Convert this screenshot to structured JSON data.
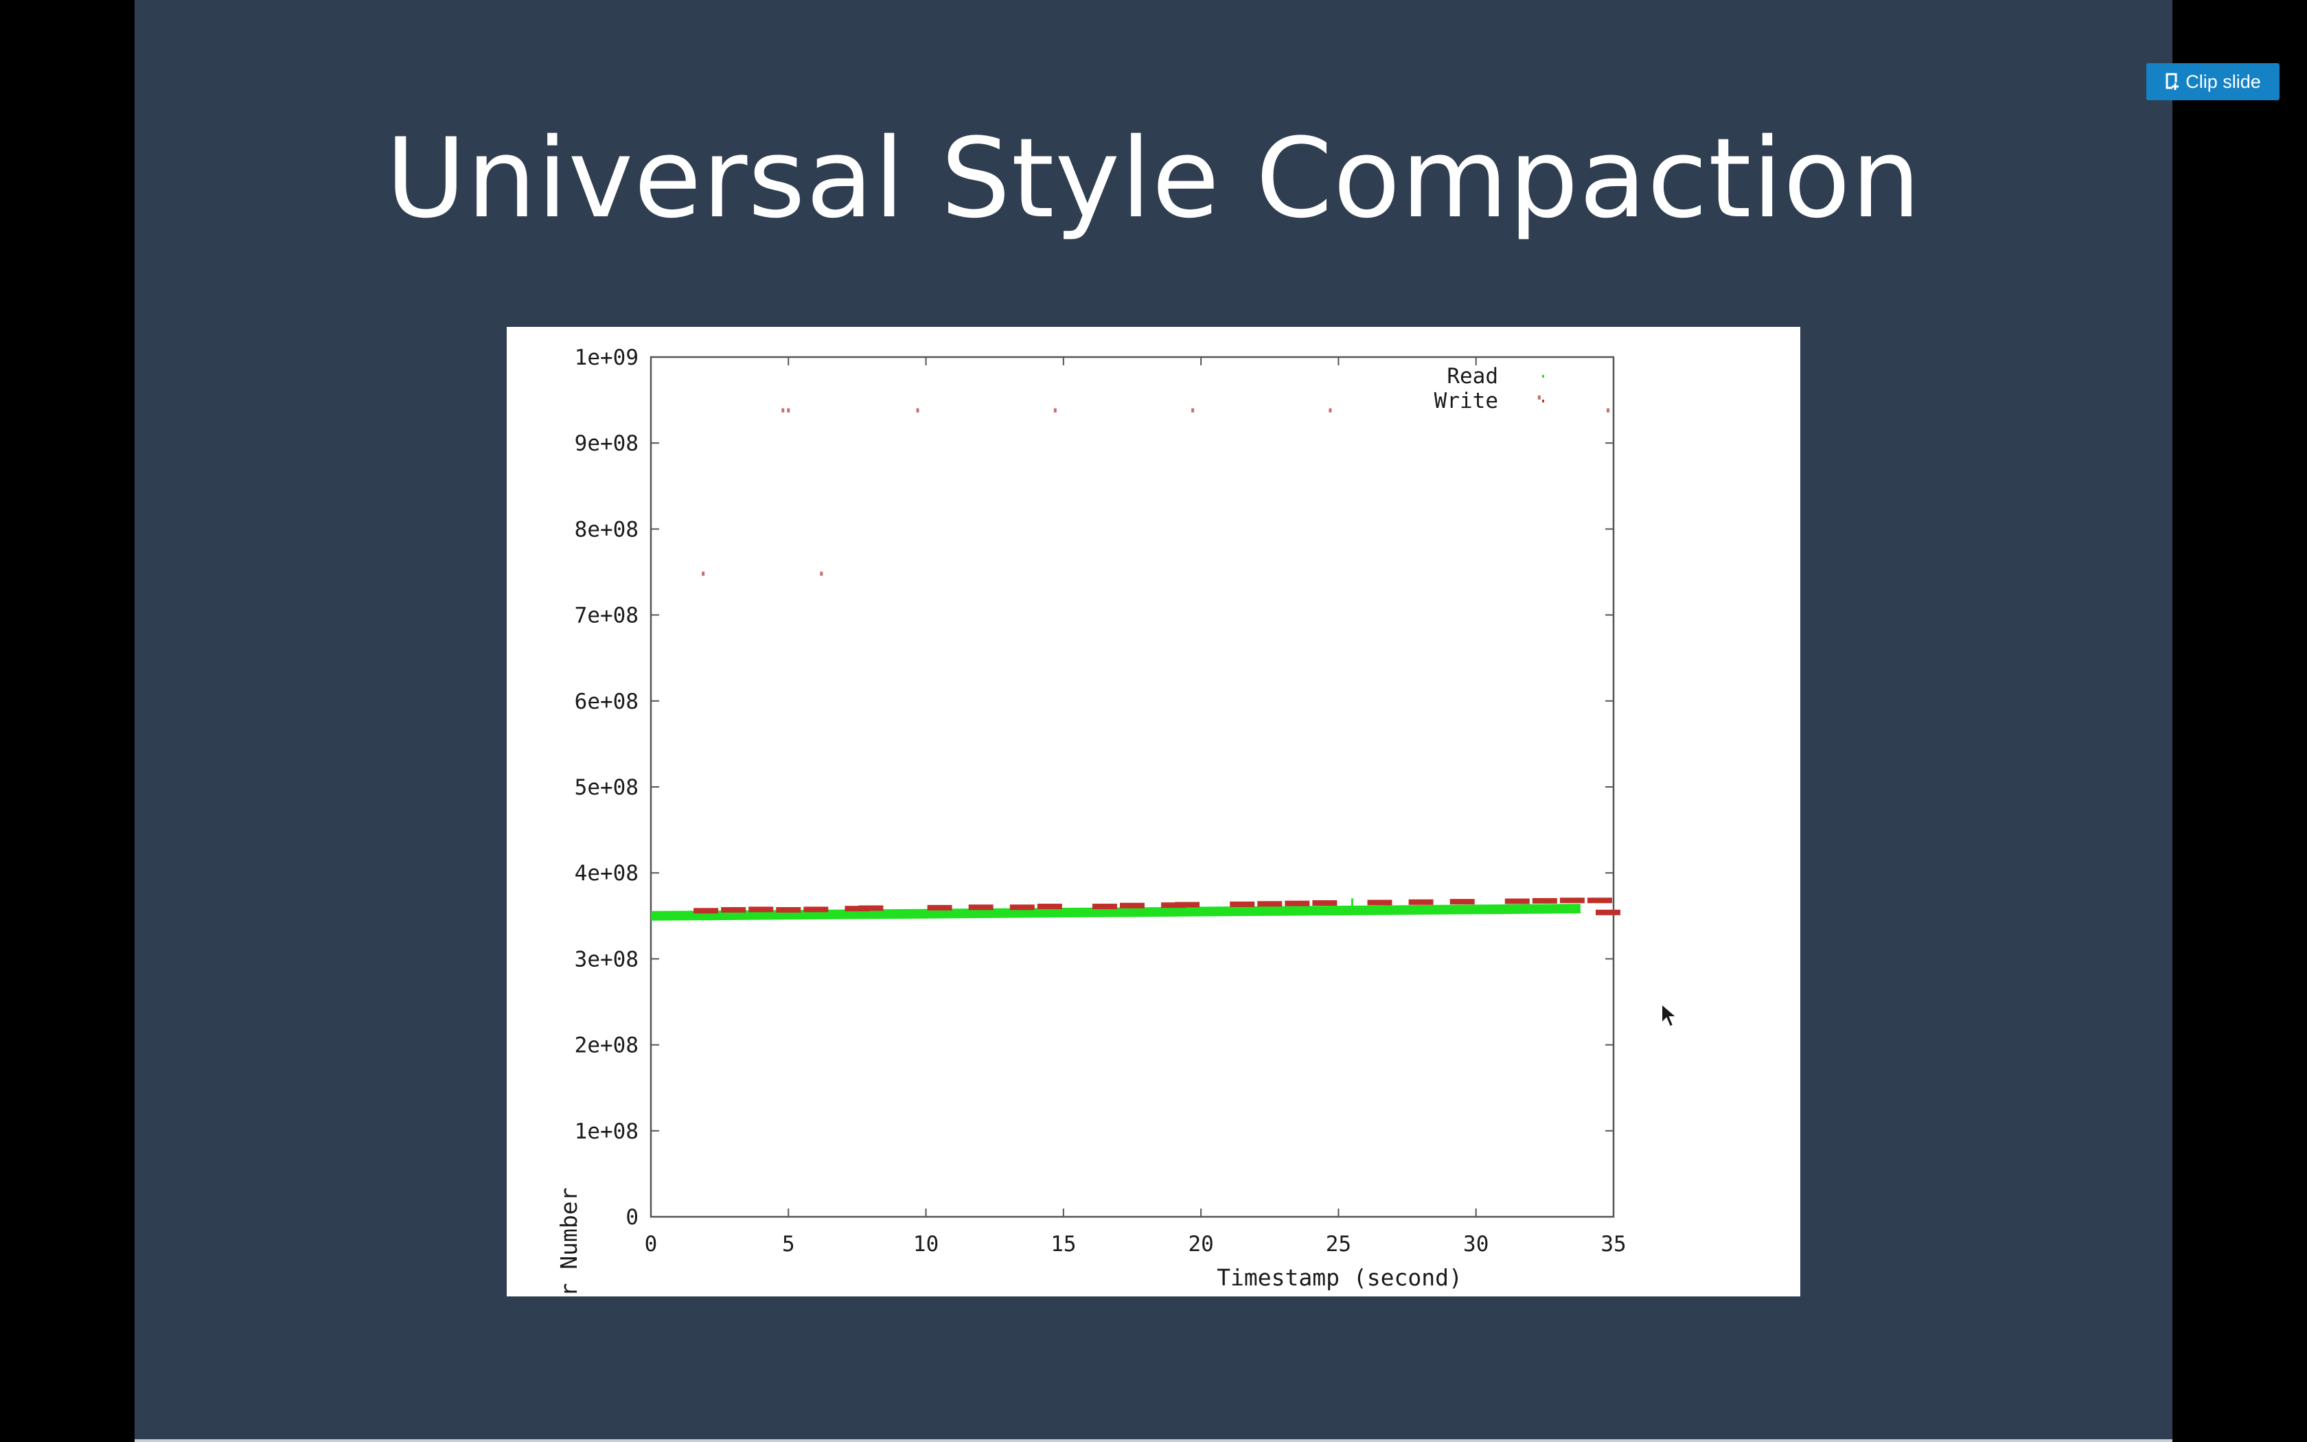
{
  "slide": {
    "title": "Universal Style Compaction"
  },
  "toolbar": {
    "clip_label": "Clip slide"
  },
  "colors": {
    "slide_background": "#2f3e50",
    "clip_button": "#1682c6",
    "read_series": "#20e020",
    "write_series": "#c0302a"
  },
  "chart_data": {
    "type": "scatter",
    "title": "",
    "xlabel": "Timestamp (second)",
    "ylabel": "Logical Sector Number",
    "xlim": [
      0,
      35
    ],
    "ylim": [
      0,
      1000000000
    ],
    "x_ticks": [
      0,
      5,
      10,
      15,
      20,
      25,
      30,
      35
    ],
    "x_tick_labels": [
      "0",
      "5",
      "10",
      "15",
      "20",
      "25",
      "30",
      "35"
    ],
    "y_ticks": [
      0,
      100000000,
      200000000,
      300000000,
      400000000,
      500000000,
      600000000,
      700000000,
      800000000,
      900000000,
      1000000000
    ],
    "y_tick_labels": [
      "0",
      "1e+08",
      "2e+08",
      "3e+08",
      "4e+08",
      "5e+08",
      "6e+08",
      "7e+08",
      "8e+08",
      "9e+08",
      "1e+09"
    ],
    "grid": false,
    "legend_position": "top-right",
    "series": [
      {
        "name": "Read",
        "color": "#20e020",
        "points": [
          [
            0.0,
            350000000
          ],
          [
            2.0,
            350500000
          ],
          [
            4.0,
            351000000
          ],
          [
            6.0,
            351500000
          ],
          [
            8.0,
            352000000
          ],
          [
            10.0,
            352500000
          ],
          [
            12.0,
            353000000
          ],
          [
            14.0,
            353500000
          ],
          [
            16.0,
            354000000
          ],
          [
            18.0,
            354500000
          ],
          [
            20.0,
            355000000
          ],
          [
            22.0,
            355500000
          ],
          [
            24.0,
            356000000
          ],
          [
            25.5,
            368000000
          ],
          [
            26.0,
            356500000
          ],
          [
            28.0,
            357000000
          ],
          [
            30.0,
            357500000
          ],
          [
            32.0,
            358000000
          ],
          [
            33.8,
            358500000
          ]
        ]
      },
      {
        "name": "Write",
        "color": "#c0302a",
        "points": [
          [
            2.0,
            356000000
          ],
          [
            3.0,
            357000000
          ],
          [
            4.0,
            357500000
          ],
          [
            5.0,
            357000000
          ],
          [
            6.0,
            357500000
          ],
          [
            7.5,
            358500000
          ],
          [
            8.0,
            359000000
          ],
          [
            10.5,
            359500000
          ],
          [
            12.0,
            360000000
          ],
          [
            13.5,
            360000000
          ],
          [
            14.5,
            361000000
          ],
          [
            16.5,
            361000000
          ],
          [
            17.5,
            362000000
          ],
          [
            19.0,
            362500000
          ],
          [
            19.5,
            363000000
          ],
          [
            21.5,
            363500000
          ],
          [
            22.5,
            364000000
          ],
          [
            23.5,
            364500000
          ],
          [
            24.5,
            365000000
          ],
          [
            26.5,
            365500000
          ],
          [
            28.0,
            366000000
          ],
          [
            29.5,
            366500000
          ],
          [
            31.5,
            367000000
          ],
          [
            32.5,
            367500000
          ],
          [
            33.5,
            368000000
          ],
          [
            34.5,
            368000000
          ],
          [
            34.8,
            354000000
          ],
          [
            1.9,
            748000000
          ],
          [
            6.2,
            748000000
          ],
          [
            4.8,
            938000000
          ],
          [
            5.0,
            938000000
          ],
          [
            9.7,
            938000000
          ],
          [
            14.7,
            938000000
          ],
          [
            19.7,
            938000000
          ],
          [
            24.7,
            938000000
          ],
          [
            32.3,
            953000000
          ],
          [
            34.8,
            938000000
          ]
        ]
      }
    ]
  }
}
